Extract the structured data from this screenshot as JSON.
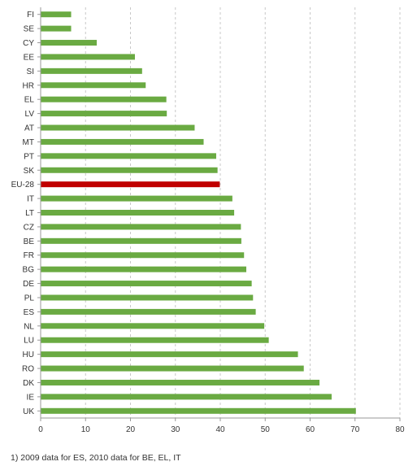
{
  "chart_data": {
    "type": "bar",
    "orientation": "horizontal",
    "categories": [
      "FI",
      "SE",
      "CY",
      "EE",
      "SI",
      "HR",
      "EL",
      "LV",
      "AT",
      "MT",
      "PT",
      "SK",
      "EU-28",
      "IT",
      "LT",
      "CZ",
      "BE",
      "FR",
      "BG",
      "DE",
      "PL",
      "ES",
      "NL",
      "LU",
      "HU",
      "RO",
      "DK",
      "IE",
      "UK"
    ],
    "values": [
      6.7,
      6.7,
      12.4,
      20.9,
      22.5,
      23.3,
      27.9,
      28.0,
      34.2,
      36.2,
      39.0,
      39.3,
      39.8,
      42.6,
      43.0,
      44.5,
      44.6,
      45.2,
      45.7,
      46.9,
      47.2,
      47.8,
      49.7,
      50.7,
      57.2,
      58.5,
      62.0,
      64.7,
      70.1
    ],
    "highlight": "EU-28",
    "xlim": [
      0,
      80
    ],
    "xticks": [
      "0",
      "10",
      "20",
      "30",
      "40",
      "50",
      "60",
      "70",
      "80"
    ],
    "grid": true,
    "title": "",
    "xlabel": "",
    "ylabel": ""
  },
  "colors": {
    "bar": "#6aaa42",
    "highlight": "#c00000",
    "grid": "#c8c8c8",
    "axis": "#999999",
    "label": "#333333"
  },
  "footnote": "1) 2009 data for ES, 2010 data for BE, EL, IT"
}
